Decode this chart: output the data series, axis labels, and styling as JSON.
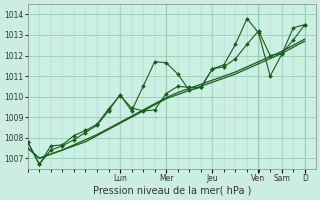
{
  "background_color": "#cceee0",
  "plot_bg_color": "#caf0e4",
  "grid_major_color": "#99ccb3",
  "grid_minor_color": "#bbddd0",
  "line_color": "#1a5c1a",
  "xlabel": "Pression niveau de la mer( hPa )",
  "ylim": [
    1006.5,
    1014.5
  ],
  "yticks": [
    1007,
    1008,
    1009,
    1010,
    1011,
    1012,
    1013,
    1014
  ],
  "day_labels": [
    "Lun",
    "Mer",
    "Jeu",
    "Ven",
    "Sam",
    "D"
  ],
  "day_tick_positions": [
    0.333,
    0.5,
    0.667,
    0.833,
    0.917,
    1.0
  ],
  "series1": [
    1007.8,
    1006.7,
    1007.4,
    1007.6,
    1007.9,
    1008.25,
    1008.6,
    1009.3,
    1010.1,
    1009.3,
    1010.5,
    1011.7,
    1011.65,
    1011.1,
    1010.3,
    1010.45,
    1011.35,
    1011.55,
    1012.55,
    1013.8,
    1013.1,
    1011.0,
    1012.05,
    1013.35,
    1013.5
  ],
  "series2": [
    1007.8,
    1006.7,
    1007.6,
    1007.65,
    1008.1,
    1008.35,
    1008.65,
    1009.4,
    1010.05,
    1009.45,
    1009.3,
    1009.35,
    1010.15,
    1010.5,
    1010.45,
    1010.45,
    1011.35,
    1011.45,
    1011.85,
    1012.55,
    1013.2,
    1012.0,
    1012.1,
    1012.75,
    1013.5
  ],
  "series3_smooth": [
    1007.5,
    1007.0,
    1007.2,
    1007.4,
    1007.6,
    1007.8,
    1008.1,
    1008.4,
    1008.7,
    1009.0,
    1009.3,
    1009.6,
    1009.9,
    1010.1,
    1010.3,
    1010.5,
    1010.7,
    1010.9,
    1011.1,
    1011.35,
    1011.6,
    1011.85,
    1012.1,
    1012.4,
    1012.7
  ],
  "series4_smooth": [
    1007.5,
    1007.0,
    1007.2,
    1007.4,
    1007.65,
    1007.9,
    1008.15,
    1008.45,
    1008.75,
    1009.05,
    1009.35,
    1009.65,
    1009.95,
    1010.2,
    1010.4,
    1010.6,
    1010.8,
    1011.0,
    1011.2,
    1011.45,
    1011.7,
    1011.95,
    1012.2,
    1012.5,
    1012.8
  ],
  "n_points": 25,
  "xlabel_fontsize": 7.0,
  "tick_fontsize": 5.5
}
